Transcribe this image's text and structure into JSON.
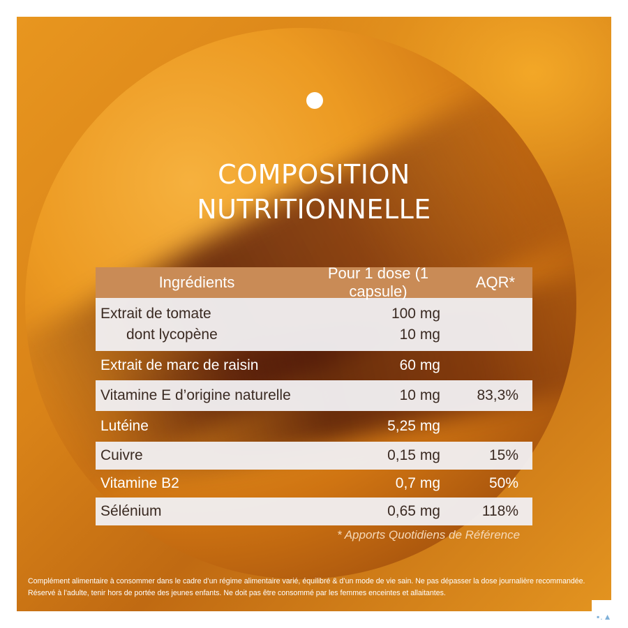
{
  "title": {
    "line1": "COMPOSITION",
    "line2": "NUTRITIONNELLE"
  },
  "table": {
    "headers": [
      "Ingrédients",
      "Pour 1 dose (1 capsule)",
      "AQR*"
    ],
    "rows": [
      {
        "name": "Extrait de tomate",
        "dose": "100 mg",
        "aqr": ""
      },
      {
        "name": "dont lycopène",
        "dose": "10 mg",
        "aqr": ""
      },
      {
        "name": "Extrait de marc de raisin",
        "dose": "60 mg",
        "aqr": ""
      },
      {
        "name": "Vitamine E d’origine naturelle",
        "dose": "10 mg",
        "aqr": "83,3%"
      },
      {
        "name": "Lutéine",
        "dose": "5,25 mg",
        "aqr": ""
      },
      {
        "name": "Cuivre",
        "dose": "0,15 mg",
        "aqr": "15%"
      },
      {
        "name": "Vitamine B2",
        "dose": "0,7 mg",
        "aqr": "50%"
      },
      {
        "name": "Sélénium",
        "dose": "0,65 mg",
        "aqr": "118%"
      }
    ]
  },
  "aqr_note": "* Apports Quotidiens de Référence",
  "legal_text": "Complément alimentaire à consommer dans le cadre d’un régime alimentaire varié, équilibré & d’un mode de vie sain. Ne pas dépasser la dose journalière recommandée. Réservé à l’adulte, tenir hors de portée des jeunes enfants. Ne doit pas être consommé par les femmes enceintes et allaitantes.",
  "corner_mark": "▪.▲",
  "colors": {
    "header_bg": "#c98b56",
    "row_light": "#f0eef0",
    "orange": "#e8961f",
    "brown": "#6f300a"
  }
}
